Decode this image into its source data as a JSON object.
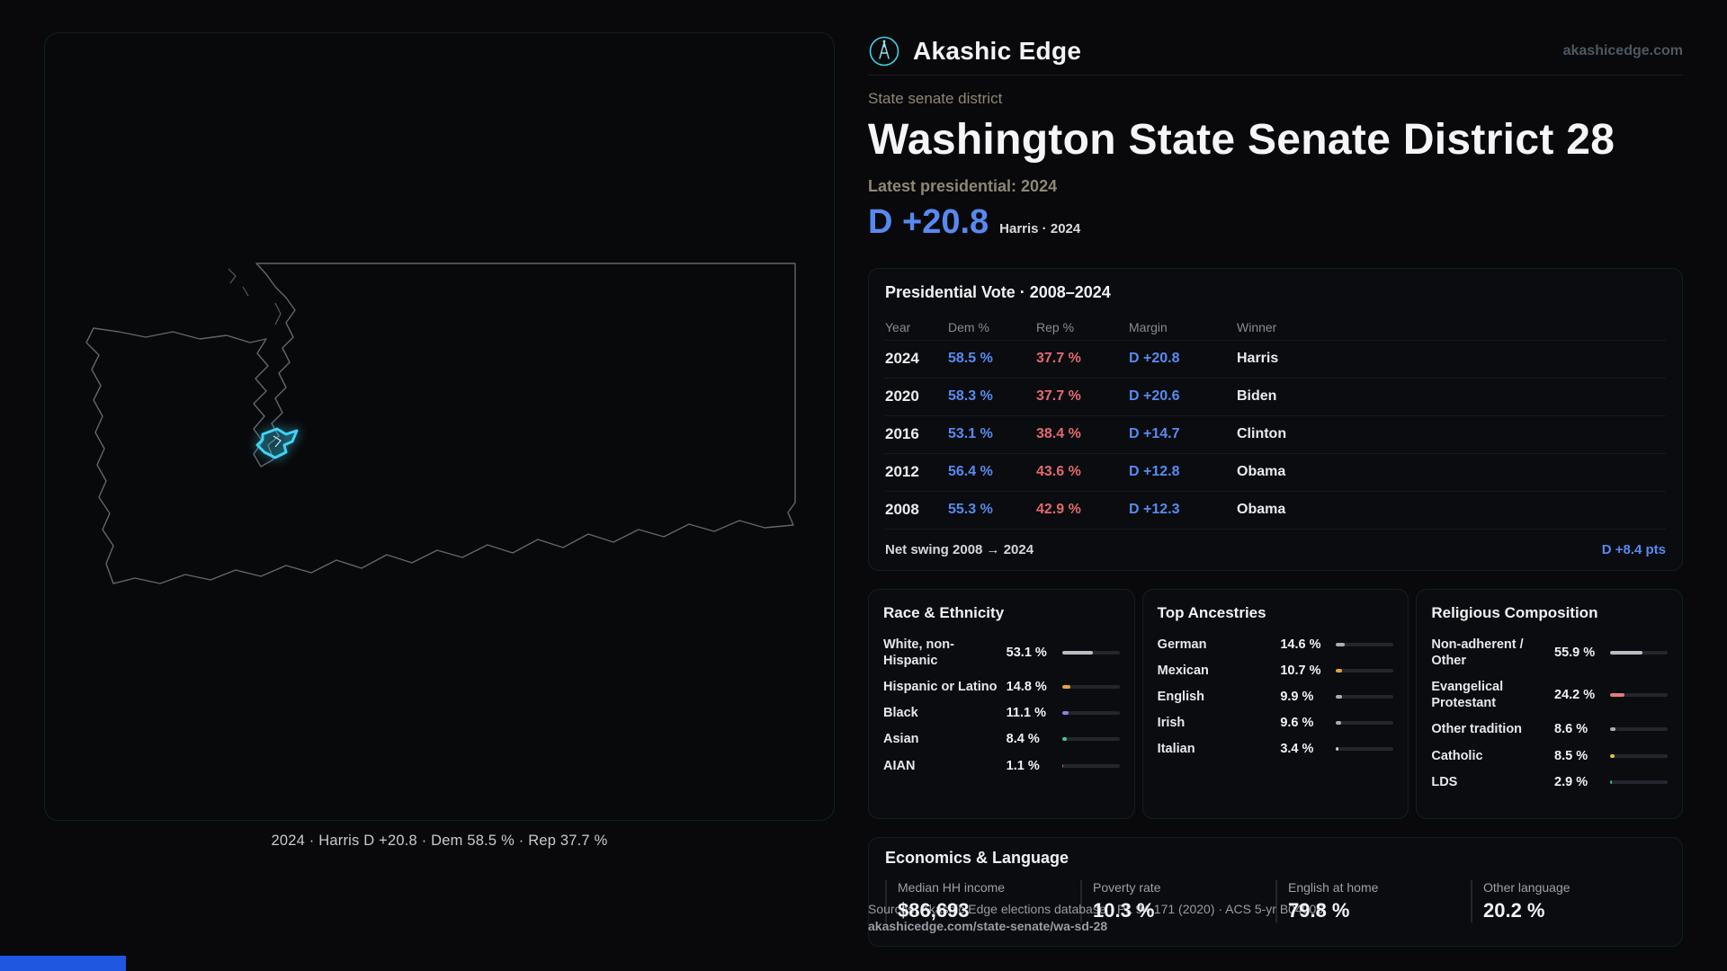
{
  "colors": {
    "dem": "#568af2",
    "rep": "#e0696f",
    "accent": "#3ed4f6"
  },
  "brand": {
    "name": "Akashic Edge",
    "domain": "akashicedge.com"
  },
  "hero": {
    "kicker": "State senate district",
    "title": "Washington State Senate District 28",
    "latest_label": "Latest presidential: 2024",
    "margin_value": "D +20.8",
    "margin_context": "Harris · 2024"
  },
  "map": {
    "caption": "2024 · Harris D +20.8 · Dem 58.5 % · Rep 37.7 %"
  },
  "presidential": {
    "title": "Presidential Vote · 2008–2024",
    "columns": [
      "Year",
      "Dem %",
      "Rep %",
      "Margin",
      "Winner"
    ],
    "rows": [
      {
        "year": "2024",
        "dem": "58.5 %",
        "rep": "37.7 %",
        "margin": "D +20.8",
        "winner": "Harris"
      },
      {
        "year": "2020",
        "dem": "58.3 %",
        "rep": "37.7 %",
        "margin": "D +20.6",
        "winner": "Biden"
      },
      {
        "year": "2016",
        "dem": "53.1 %",
        "rep": "38.4 %",
        "margin": "D +14.7",
        "winner": "Clinton"
      },
      {
        "year": "2012",
        "dem": "56.4 %",
        "rep": "43.6 %",
        "margin": "D +12.8",
        "winner": "Obama"
      },
      {
        "year": "2008",
        "dem": "55.3 %",
        "rep": "42.9 %",
        "margin": "D +12.3",
        "winner": "Obama"
      }
    ],
    "net_swing_label": "Net swing 2008 → 2024",
    "net_swing_value": "D +8.4 pts"
  },
  "race": {
    "title": "Race & Ethnicity",
    "rows": [
      {
        "label": "White, non-Hispanic",
        "value": "53.1 %",
        "pct": 53.1,
        "color": "#b8bdc6"
      },
      {
        "label": "Hispanic or Latino",
        "value": "14.8 %",
        "pct": 14.8,
        "color": "#e3a43c"
      },
      {
        "label": "Black",
        "value": "11.1 %",
        "pct": 11.1,
        "color": "#8a7ff0"
      },
      {
        "label": "Asian",
        "value": "8.4 %",
        "pct": 8.4,
        "color": "#37c9a4"
      },
      {
        "label": "AIAN",
        "value": "1.1 %",
        "pct": 1.1,
        "color": "#e0696f"
      }
    ]
  },
  "ancestries": {
    "title": "Top Ancestries",
    "rows": [
      {
        "label": "German",
        "value": "14.6 %",
        "pct": 14.6,
        "color": "#a9aeb7"
      },
      {
        "label": "Mexican",
        "value": "10.7 %",
        "pct": 10.7,
        "color": "#e3a43c"
      },
      {
        "label": "English",
        "value": "9.9 %",
        "pct": 9.9,
        "color": "#a9aeb7"
      },
      {
        "label": "Irish",
        "value": "9.6 %",
        "pct": 9.6,
        "color": "#a9aeb7"
      },
      {
        "label": "Italian",
        "value": "3.4 %",
        "pct": 3.4,
        "color": "#c9ccd2"
      }
    ]
  },
  "religion": {
    "title": "Religious Composition",
    "rows": [
      {
        "label": "Non-adherent / Other",
        "value": "55.9 %",
        "pct": 55.9,
        "color": "#b8bdc6"
      },
      {
        "label": "Evangelical Protestant",
        "value": "24.2 %",
        "pct": 24.2,
        "color": "#e57a7a"
      },
      {
        "label": "Other tradition",
        "value": "8.6 %",
        "pct": 8.6,
        "color": "#a9aeb7"
      },
      {
        "label": "Catholic",
        "value": "8.5 %",
        "pct": 8.5,
        "color": "#e3c03c"
      },
      {
        "label": "LDS",
        "value": "2.9 %",
        "pct": 2.9,
        "color": "#3cc46a"
      }
    ]
  },
  "economics": {
    "title": "Economics & Language",
    "stats": [
      {
        "label": "Median HH income",
        "value": "$86,693"
      },
      {
        "label": "Poverty rate",
        "value": "10.3 %"
      },
      {
        "label": "English at home",
        "value": "79.8 %"
      },
      {
        "label": "Other language",
        "value": "20.2 %"
      }
    ]
  },
  "footer": {
    "sources": "Sources: Akashic Edge elections database · PL 94-171 (2020) · ACS 5-yr B04006",
    "permalink": "akashicedge.com/state-senate/wa-sd-28"
  }
}
